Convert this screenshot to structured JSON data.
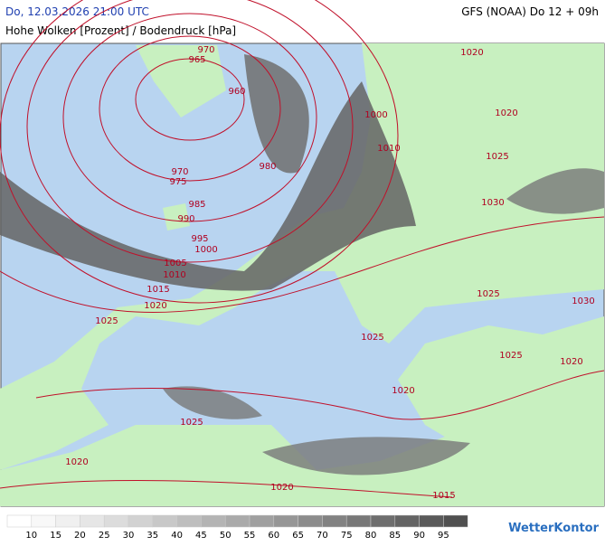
{
  "header": {
    "datetime": "Do, 12.03.2026 21:00 UTC",
    "model": "GFS (NOAA) Do 12 + 09h",
    "title": "Hohe Wolken [Prozent] / Bodendruck [hPa]"
  },
  "isobar_labels": [
    "970",
    "965",
    "960",
    "1020",
    "1000",
    "1020",
    "1010",
    "1025",
    "980",
    "970",
    "975",
    "985",
    "990",
    "1030",
    "995",
    "1000",
    "1005",
    "1010",
    "1015",
    "1020",
    "1025",
    "1030",
    "1025",
    "1025",
    "1025",
    "1020",
    "1020",
    "1025",
    "1020",
    "1020",
    "1015"
  ],
  "legend": {
    "labels": [
      "10",
      "15",
      "20",
      "25",
      "30",
      "35",
      "40",
      "45",
      "50",
      "55",
      "60",
      "65",
      "70",
      "75",
      "80",
      "85",
      "90",
      "95"
    ],
    "colors": [
      "#ffffff",
      "#f8f8f8",
      "#f0f0f0",
      "#e6e6e6",
      "#dcdcdc",
      "#d2d2d2",
      "#c8c8c8",
      "#bebebe",
      "#b4b4b4",
      "#aaaaaa",
      "#a0a0a0",
      "#969696",
      "#8c8c8c",
      "#828282",
      "#787878",
      "#6e6e6e",
      "#646464",
      "#5a5a5a",
      "#505050"
    ]
  },
  "brand": "WetterKontor"
}
